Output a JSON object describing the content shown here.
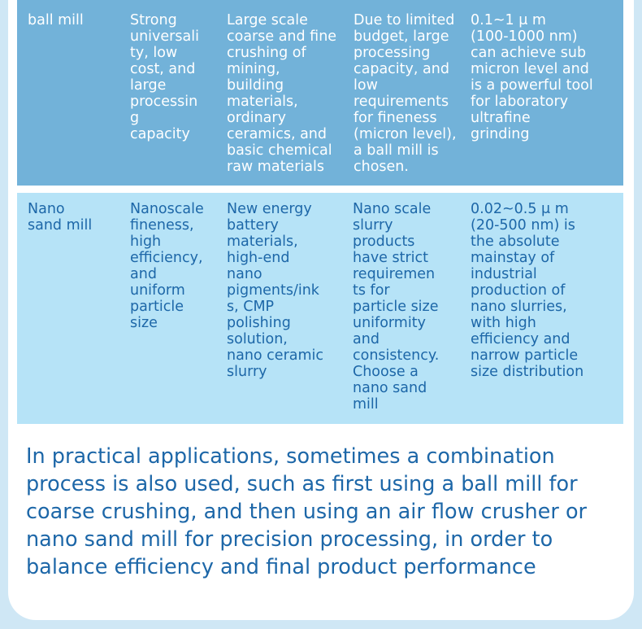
{
  "table": {
    "rows": [
      {
        "cells": [
          "ball mill",
          "Strong\nuniversali\nty, low\ncost, and\nlarge\nprocessin\ng\ncapacity",
          "Large scale\ncoarse and fine\ncrushing of\nmining,\nbuilding\nmaterials,\nordinary\nceramics, and\nbasic chemical\nraw materials",
          "Due to limited\nbudget, large\nprocessing\ncapacity, and\nlow\nrequirements\nfor fineness\n(micron level),\na ball mill is\nchosen.",
          "0.1~1 μ m\n(100-1000 nm)\ncan achieve sub\nmicron level and\nis a powerful tool\nfor laboratory\nultrafine\ngrinding"
        ]
      },
      {
        "cells": [
          "Nano\nsand mill",
          "Nanoscale\nfineness,\nhigh\nefficiency,\nand\nuniform\nparticle\nsize",
          "New energy\nbattery\nmaterials,\nhigh-end\nnano\npigments/ink\ns, CMP\npolishing\nsolution,\nnano ceramic\nslurry",
          "Nano scale\nslurry\nproducts\nhave strict\nrequiremen\nts for\nparticle size\nuniformity\nand\nconsistency.\nChoose a\nnano sand\nmill",
          "0.02~0.5 μ m\n(20-500 nm) is\nthe absolute\nmainstay of\nindustrial\nproduction of\nnano slurries,\nwith high\nefficiency and\nnarrow particle\nsize distribution"
        ]
      }
    ]
  },
  "summary": "In practical applications, sometimes a combination process is also used, such as first using a ball mill for coarse crushing, and then using an air flow crusher or nano sand mill for precision processing, in order to balance efficiency and final product performance",
  "colors": {
    "row1_bg": "#72b2d9",
    "row1_text": "#ffffff",
    "row2_bg": "#b6e3f7",
    "row2_text": "#1d67a8",
    "summary_text": "#1d67a8",
    "page_bg": "#cfe7f5"
  }
}
